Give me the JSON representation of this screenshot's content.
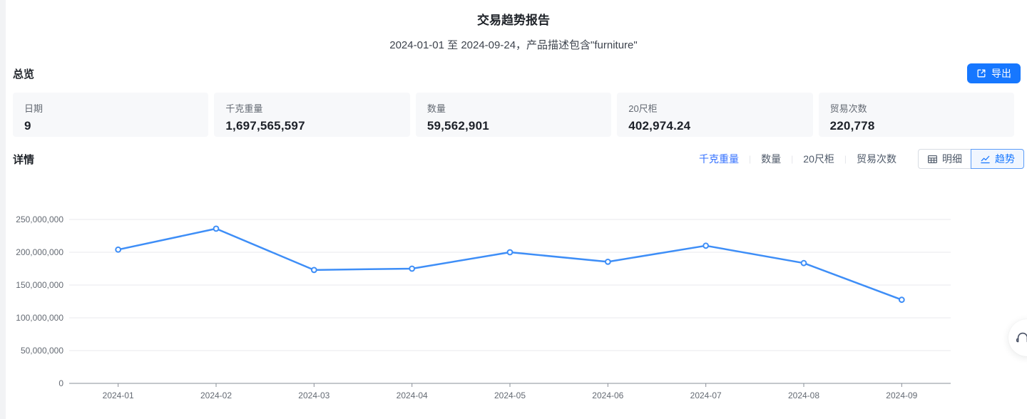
{
  "report": {
    "title": "交易趋势报告",
    "subtitle": "2024-01-01 至 2024-09-24，产品描述包含\"furniture\""
  },
  "overview": {
    "heading": "总览",
    "export_label": "导出",
    "export_icon": "export-icon",
    "cards": [
      {
        "label": "日期",
        "value": "9"
      },
      {
        "label": "千克重量",
        "value": "1,697,565,597"
      },
      {
        "label": "数量",
        "value": "59,562,901"
      },
      {
        "label": "20尺柜",
        "value": "402,974.24"
      },
      {
        "label": "贸易次数",
        "value": "220,778"
      }
    ]
  },
  "details": {
    "heading": "详情",
    "tab_separator": "|",
    "metric_tabs": [
      {
        "label": "千克重量",
        "active": true
      },
      {
        "label": "数量",
        "active": false
      },
      {
        "label": "20尺柜",
        "active": false
      },
      {
        "label": "贸易次数",
        "active": false
      }
    ],
    "view_toggle": [
      {
        "label": "明细",
        "icon": "table-icon",
        "active": false
      },
      {
        "label": "趋势",
        "icon": "trend-icon",
        "active": true
      }
    ]
  },
  "chart_data": {
    "type": "line",
    "title": "",
    "series_name": "千克重量",
    "x": [
      "2024-01",
      "2024-02",
      "2024-03",
      "2024-04",
      "2024-05",
      "2024-06",
      "2024-07",
      "2024-08",
      "2024-09"
    ],
    "values": [
      204000000,
      236000000,
      173000000,
      175000000,
      200000000,
      185500000,
      210000000,
      183500000,
      127500000
    ],
    "xlabel": "",
    "ylabel": "",
    "ylim": [
      0,
      250000000
    ],
    "yticks": [
      0,
      50000000,
      100000000,
      150000000,
      200000000,
      250000000
    ],
    "ytick_labels": [
      "0",
      "50,000,000",
      "100,000,000",
      "150,000,000",
      "200,000,000",
      "250,000,000"
    ],
    "grid": true,
    "legend_position": "none",
    "line_color": "#3E8EF7",
    "marker": "hollow-circle"
  },
  "floating": {
    "customer_service_icon": "headset-icon"
  },
  "colors": {
    "primary": "#1677ff",
    "active_tab_text": "#3370ff",
    "card_bg": "#f7f8fa",
    "gridline": "#e8eaed",
    "axis": "#8a9099",
    "tick_label": "#646a73",
    "left_strip": "#f2f3f5"
  }
}
